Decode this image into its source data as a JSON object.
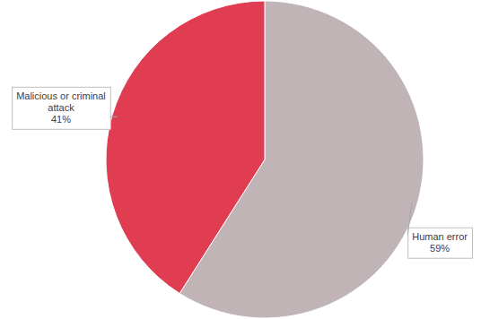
{
  "chart_data": {
    "type": "pie",
    "categories": [
      "Human error",
      "Malicious or criminal attack"
    ],
    "values": [
      59,
      41
    ],
    "value_labels": [
      "59%",
      "41%"
    ],
    "colors": [
      "#c0b4b6",
      "#e03c52"
    ],
    "data_labels": true
  }
}
